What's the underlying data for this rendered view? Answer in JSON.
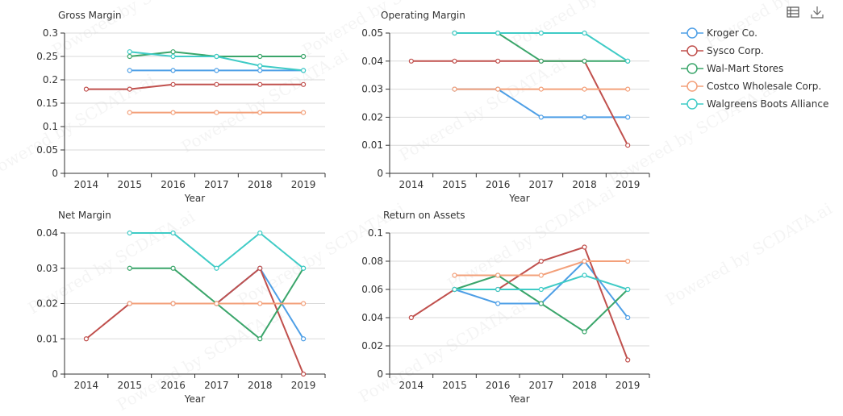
{
  "toolbar": {
    "table_icon": "table-icon",
    "download_icon": "download-icon"
  },
  "watermark": "Powered by SCDATA.ai",
  "colors": {
    "Kroger Co.": "#4e9fe6",
    "Sysco Corp.": "#c0504d",
    "Wal-Mart Stores": "#3aa56a",
    "Costco Wholesale Corp.": "#f3a07a",
    "Walgreens Boots Alliance": "#3fcbc6"
  },
  "legend": [
    "Kroger Co.",
    "Sysco Corp.",
    "Wal-Mart Stores",
    "Costco Wholesale Corp.",
    "Walgreens Boots Alliance"
  ],
  "chart_data": [
    {
      "type": "line",
      "title": "Gross Margin",
      "xlabel": "Year",
      "categories": [
        "2014",
        "2015",
        "2016",
        "2017",
        "2018",
        "2019"
      ],
      "ylim": [
        0,
        0.3
      ],
      "yticks": [
        "0",
        "0.05",
        "0.1",
        "0.15",
        "0.2",
        "0.25",
        "0.3"
      ],
      "series": [
        {
          "name": "Kroger Co.",
          "values": [
            null,
            0.22,
            0.22,
            0.22,
            0.22,
            0.22
          ]
        },
        {
          "name": "Sysco Corp.",
          "values": [
            0.18,
            0.18,
            0.19,
            0.19,
            0.19,
            0.19
          ]
        },
        {
          "name": "Wal-Mart Stores",
          "values": [
            null,
            0.25,
            0.26,
            0.25,
            0.25,
            0.25
          ]
        },
        {
          "name": "Costco Wholesale Corp.",
          "values": [
            null,
            0.13,
            0.13,
            0.13,
            0.13,
            0.13
          ]
        },
        {
          "name": "Walgreens Boots Alliance",
          "values": [
            null,
            0.26,
            0.25,
            0.25,
            0.23,
            0.22
          ]
        }
      ]
    },
    {
      "type": "line",
      "title": "Operating Margin",
      "xlabel": "Year",
      "categories": [
        "2014",
        "2015",
        "2016",
        "2017",
        "2018",
        "2019"
      ],
      "ylim": [
        0,
        0.05
      ],
      "yticks": [
        "0",
        "0.01",
        "0.02",
        "0.03",
        "0.04",
        "0.05"
      ],
      "series": [
        {
          "name": "Kroger Co.",
          "values": [
            null,
            0.03,
            0.03,
            0.02,
            0.02,
            0.02
          ]
        },
        {
          "name": "Sysco Corp.",
          "values": [
            0.04,
            0.04,
            0.04,
            0.04,
            0.04,
            0.01
          ]
        },
        {
          "name": "Wal-Mart Stores",
          "values": [
            null,
            0.05,
            0.05,
            0.04,
            0.04,
            0.04
          ]
        },
        {
          "name": "Costco Wholesale Corp.",
          "values": [
            null,
            0.03,
            0.03,
            0.03,
            0.03,
            0.03
          ]
        },
        {
          "name": "Walgreens Boots Alliance",
          "values": [
            null,
            0.05,
            0.05,
            0.05,
            0.05,
            0.04
          ]
        }
      ]
    },
    {
      "type": "line",
      "title": "Net Margin",
      "xlabel": "Year",
      "categories": [
        "2014",
        "2015",
        "2016",
        "2017",
        "2018",
        "2019"
      ],
      "ylim": [
        0,
        0.04
      ],
      "yticks": [
        "0",
        "0.01",
        "0.02",
        "0.03",
        "0.04"
      ],
      "series": [
        {
          "name": "Kroger Co.",
          "values": [
            null,
            0.02,
            0.02,
            0.02,
            0.03,
            0.01
          ]
        },
        {
          "name": "Sysco Corp.",
          "values": [
            0.01,
            0.02,
            0.02,
            0.02,
            0.03,
            0
          ]
        },
        {
          "name": "Wal-Mart Stores",
          "values": [
            null,
            0.03,
            0.03,
            0.02,
            0.01,
            0.03
          ]
        },
        {
          "name": "Costco Wholesale Corp.",
          "values": [
            null,
            0.02,
            0.02,
            0.02,
            0.02,
            0.02
          ]
        },
        {
          "name": "Walgreens Boots Alliance",
          "values": [
            null,
            0.04,
            0.04,
            0.03,
            0.04,
            0.03
          ]
        }
      ]
    },
    {
      "type": "line",
      "title": "Return on Assets",
      "xlabel": "Year",
      "categories": [
        "2014",
        "2015",
        "2016",
        "2017",
        "2018",
        "2019"
      ],
      "ylim": [
        0,
        0.1
      ],
      "yticks": [
        "0",
        "0.02",
        "0.04",
        "0.06",
        "0.08",
        "0.1"
      ],
      "series": [
        {
          "name": "Kroger Co.",
          "values": [
            null,
            0.06,
            0.05,
            0.05,
            0.08,
            0.04
          ]
        },
        {
          "name": "Sysco Corp.",
          "values": [
            0.04,
            0.06,
            0.06,
            0.08,
            0.09,
            0.01
          ]
        },
        {
          "name": "Wal-Mart Stores",
          "values": [
            null,
            0.06,
            0.07,
            0.05,
            0.03,
            0.06
          ]
        },
        {
          "name": "Costco Wholesale Corp.",
          "values": [
            null,
            0.07,
            0.07,
            0.07,
            0.08,
            0.08
          ]
        },
        {
          "name": "Walgreens Boots Alliance",
          "values": [
            null,
            0.06,
            0.06,
            0.06,
            0.07,
            0.06
          ]
        }
      ]
    }
  ]
}
